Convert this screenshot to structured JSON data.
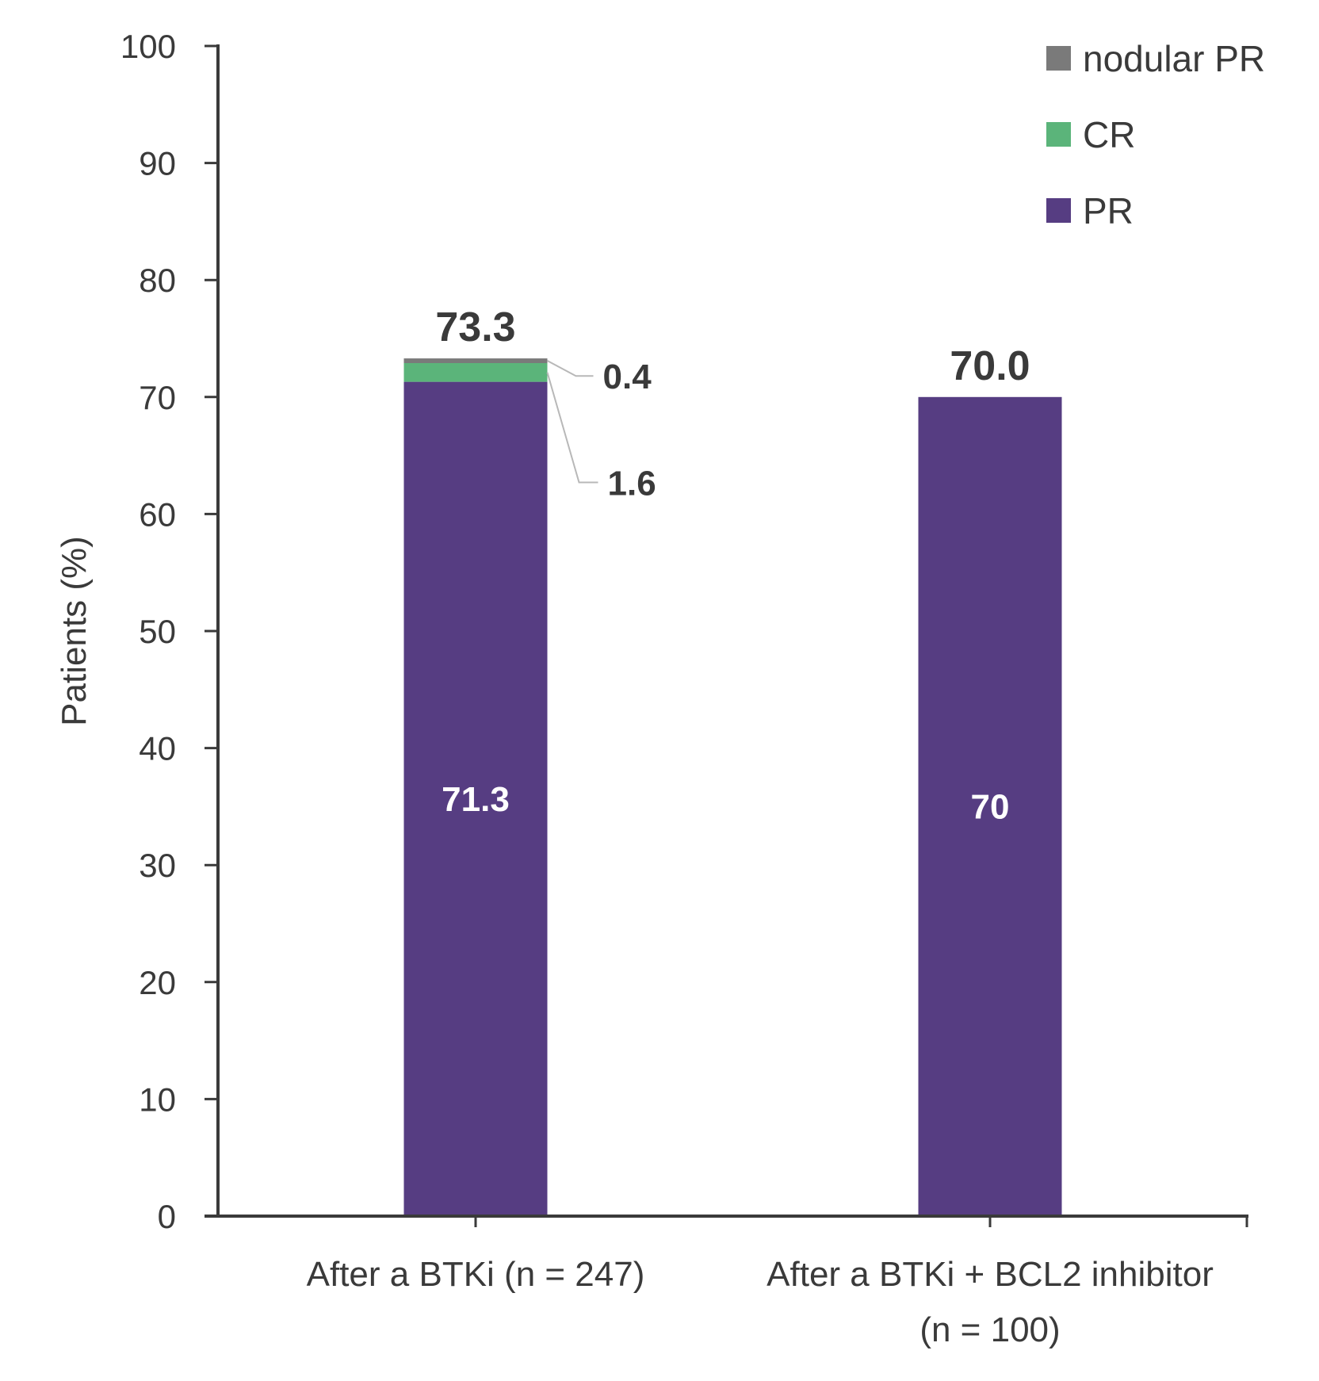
{
  "chart_data": {
    "type": "bar",
    "stacked": true,
    "title": "",
    "xlabel": "",
    "ylabel": "Patients (%)",
    "ylim": [
      0,
      100
    ],
    "yticks": [
      0,
      10,
      20,
      30,
      40,
      50,
      60,
      70,
      80,
      90,
      100
    ],
    "categories": [
      {
        "line1": "After a BTKi (n = 247)",
        "line2": ""
      },
      {
        "line1": "After a BTKi + BCL2 inhibitor",
        "line2": "(n = 100)"
      }
    ],
    "series": [
      {
        "name": "PR",
        "color": "#563d82",
        "values": [
          71.3,
          70
        ],
        "labels": [
          "71.3",
          "70"
        ]
      },
      {
        "name": "CR",
        "color": "#5bb47a",
        "values": [
          1.6,
          0
        ],
        "labels": [
          "1.6",
          ""
        ]
      },
      {
        "name": "nodular PR",
        "color": "#7a7a7a",
        "values": [
          0.4,
          0
        ],
        "labels": [
          "0.4",
          ""
        ]
      }
    ],
    "totals": [
      "73.3",
      "70.0"
    ],
    "legend": {
      "placement": "top-right",
      "order": [
        "nodular PR",
        "CR",
        "PR"
      ]
    },
    "grid": false
  }
}
